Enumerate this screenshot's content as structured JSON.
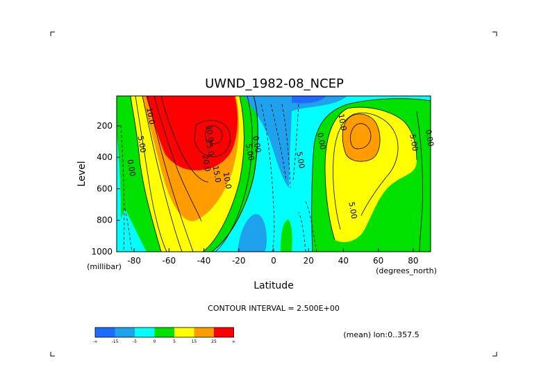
{
  "chart_data": {
    "type": "heatmap",
    "title": "UWND_1982-08_NCEP",
    "xlabel": "Latitude",
    "ylabel": "Level",
    "x_unit": "(degrees_north)",
    "y_unit": "(millibar)",
    "xlim": [
      -90,
      90
    ],
    "ylim": [
      1000,
      10
    ],
    "x_ticks": [
      -80,
      -60,
      -40,
      -20,
      0,
      20,
      40,
      60,
      80
    ],
    "x_tick_labels": [
      "-80",
      "-60",
      "-40",
      "-20",
      "0",
      "20",
      "40",
      "60",
      "80"
    ],
    "y_ticks": [
      200,
      400,
      600,
      800,
      1000
    ],
    "y_tick_labels": [
      "200",
      "400",
      "600",
      "800",
      "1000"
    ],
    "contour_interval_label": "CONTOUR INTERVAL = 2.500E+00",
    "subtitle": "(mean) lon:0..357.5",
    "contour_labels": [
      {
        "text": "30.0",
        "x": -38,
        "y": 250
      },
      {
        "text": "25.0",
        "x": -38,
        "y": 340
      },
      {
        "text": "20.0",
        "x": -40,
        "y": 440
      },
      {
        "text": "15.0",
        "x": -34,
        "y": 510
      },
      {
        "text": "10.0",
        "x": -28,
        "y": 550
      },
      {
        "text": "10.0",
        "x": -72,
        "y": 140
      },
      {
        "text": "5.00",
        "x": -77,
        "y": 320
      },
      {
        "text": "0.00",
        "x": -83,
        "y": 470
      },
      {
        "text": "5.00",
        "x": -15,
        "y": 370
      },
      {
        "text": "0.00",
        "x": -11,
        "y": 320
      },
      {
        "text": "5.00",
        "x": 14,
        "y": 420
      },
      {
        "text": "0.00",
        "x": 26,
        "y": 300
      },
      {
        "text": "10.0",
        "x": 38,
        "y": 180
      },
      {
        "text": "5.00",
        "x": 44,
        "y": 740
      },
      {
        "text": "5.00",
        "x": 79,
        "y": 310
      },
      {
        "text": "0.00",
        "x": 88,
        "y": 280
      }
    ],
    "colorbar": {
      "boundaries": [
        -35,
        -25,
        -15,
        -5,
        5,
        15,
        25,
        35
      ],
      "tick_labels": [
        "-∞",
        "-15",
        "-5",
        "0",
        "5",
        "15",
        "25",
        "∞"
      ],
      "colors": [
        "#1e6cff",
        "#1fa2ee",
        "#00ffff",
        "#00e100",
        "#ffff00",
        "#ff9c00",
        "#ff0000"
      ]
    },
    "fill_colors": {
      "neg15": "#1e6cff",
      "neg5": "#1fa2ee",
      "zero_neg": "#00ffff",
      "pos0": "#00e100",
      "pos5": "#ffff00",
      "pos15": "#ff9c00",
      "pos25": "#ff0000"
    }
  }
}
